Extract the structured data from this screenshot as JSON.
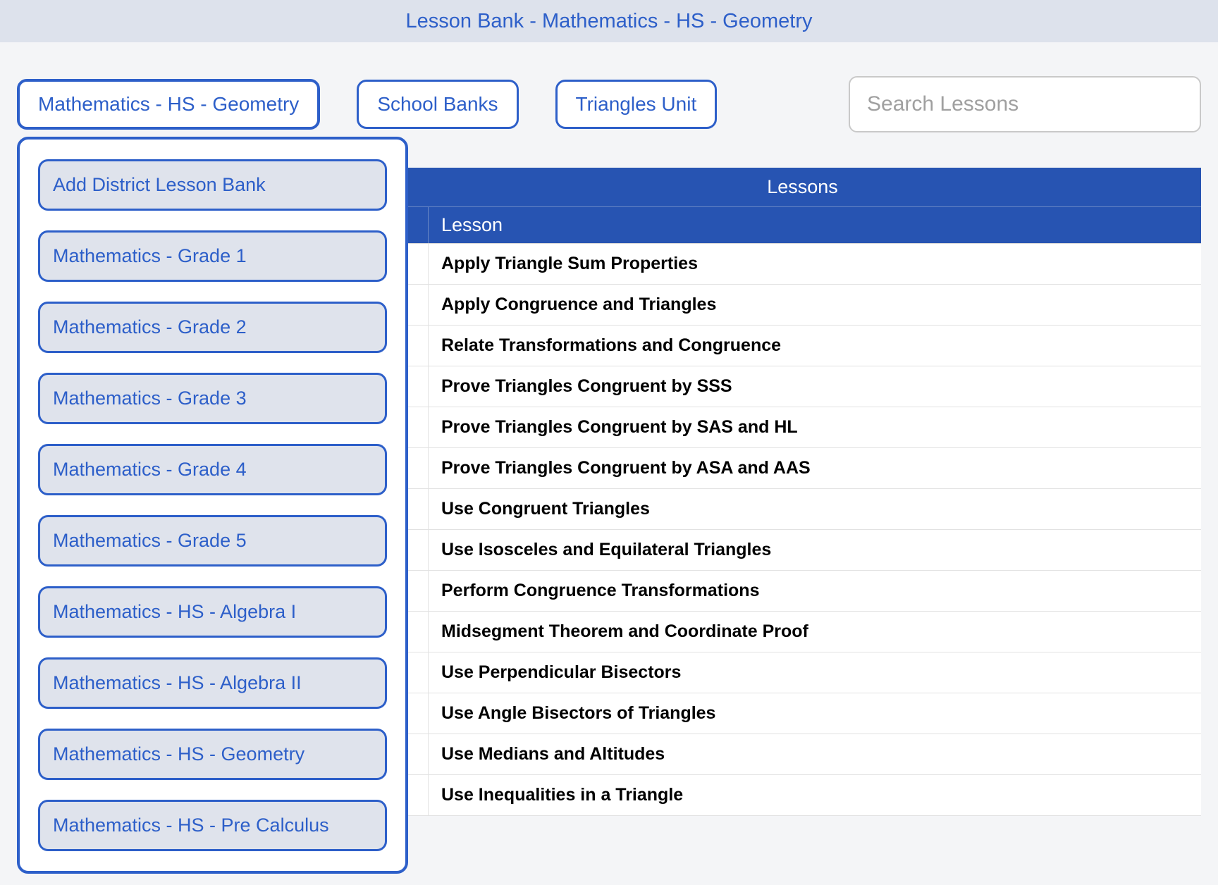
{
  "header": {
    "title": "Lesson Bank - Mathematics - HS - Geometry"
  },
  "toolbar": {
    "current_bank": "Mathematics - HS - Geometry",
    "school_banks": "School Banks",
    "unit": "Triangles Unit",
    "search_placeholder": "Search Lessons"
  },
  "dropdown": {
    "items": [
      "Add District Lesson Bank",
      "Mathematics - Grade 1",
      "Mathematics - Grade 2",
      "Mathematics - Grade 3",
      "Mathematics - Grade 4",
      "Mathematics - Grade 5",
      "Mathematics - HS - Algebra I",
      "Mathematics - HS - Algebra II",
      "Mathematics - HS - Geometry",
      "Mathematics - HS - Pre Calculus"
    ]
  },
  "table": {
    "title": "Lessons",
    "column_label": "Lesson",
    "rows": [
      "Apply Triangle Sum Properties",
      "Apply Congruence and Triangles",
      "Relate Transformations and Congruence",
      "Prove Triangles Congruent by SSS",
      "Prove Triangles Congruent by SAS and HL",
      "Prove Triangles Congruent by ASA and AAS",
      "Use Congruent Triangles",
      "Use Isosceles and Equilateral Triangles",
      "Perform Congruence Transformations",
      "Midsegment Theorem and Coordinate Proof",
      "Use Perpendicular Bisectors",
      "Use Angle Bisectors of Triangles",
      "Use Medians and Altitudes",
      "Use Inequalities in a Triangle"
    ]
  },
  "colors": {
    "page_bg": "#f4f5f7",
    "header_bg": "#dde2ec",
    "brand_blue": "#2d5fc9",
    "table_header_bg": "#2754b2",
    "dropdown_item_bg": "#dfe3ec",
    "border_light": "#e2e2e2"
  }
}
